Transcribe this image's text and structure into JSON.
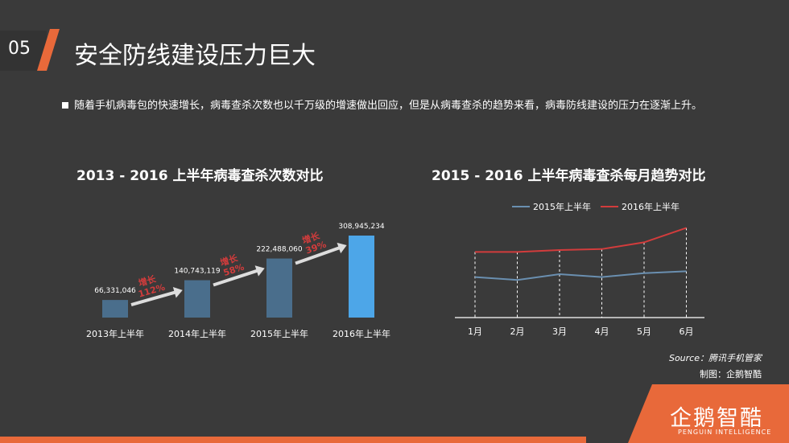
{
  "header": {
    "page_number": "05",
    "title": "安全防线建设压力巨大"
  },
  "bullet": {
    "text": "随着手机病毒包的快速增长，病毒查杀次数也以千万级的增速做出回应，但是从病毒查杀的趋势来看，病毒防线建设的压力在逐渐上升。"
  },
  "colors": {
    "accent": "#e8693a",
    "bar_dark": "#4a6e8c",
    "bar_highlight": "#4da6e8",
    "growth_label": "#d23c3c",
    "line_2015": "#6a8fb0",
    "line_2016": "#d23c3c"
  },
  "chart_data": [
    {
      "type": "bar",
      "title": "2013 - 2016 上半年病毒查杀次数对比",
      "categories": [
        "2013年上半年",
        "2014年上半年",
        "2015年上半年",
        "2016年上半年"
      ],
      "values": [
        66331046,
        140743119,
        222488060,
        308945234
      ],
      "value_labels": [
        "66,331,046",
        "140,743,119",
        "222,488,060",
        "308,945,234"
      ],
      "growth_annotations": [
        {
          "label": "增长",
          "rate": "112%"
        },
        {
          "label": "增长",
          "rate": "58%"
        },
        {
          "label": "增长",
          "rate": "39%"
        }
      ]
    },
    {
      "type": "line",
      "title": "2015 - 2016 上半年病毒查杀每月趋势对比",
      "categories": [
        "1月",
        "2月",
        "3月",
        "4月",
        "5月",
        "6月"
      ],
      "series": [
        {
          "name": "2015年上半年",
          "values": [
            0.42,
            0.39,
            0.45,
            0.42,
            0.46,
            0.48
          ]
        },
        {
          "name": "2016年上半年",
          "values": [
            0.68,
            0.68,
            0.7,
            0.71,
            0.78,
            0.93
          ]
        }
      ],
      "ylim": [
        0,
        1
      ],
      "legend_position": "top"
    }
  ],
  "footer": {
    "source": "Source：腾讯手机管家",
    "maker": "制图：企鹅智酷",
    "logo_text": "企鹅智酷",
    "logo_sub": "PENGUIN INTELLIGENCE"
  }
}
